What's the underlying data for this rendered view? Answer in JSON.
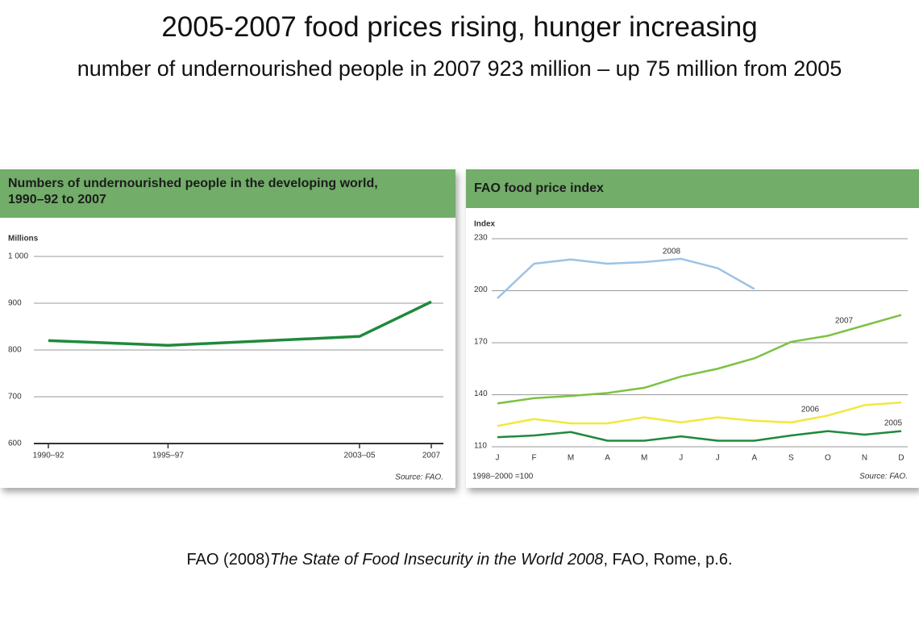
{
  "title": "2005-2007 food prices rising, hunger increasing",
  "subtitle": "number of undernourished people in 2007 923 million – up 75 million from 2005",
  "chart_data": [
    {
      "type": "line",
      "title": "Numbers of undernourished people in the developing world,\n1990–92 to 2007",
      "ylabel": "Millions",
      "source": "Source: FAO.",
      "x": [
        1991,
        1996,
        2004,
        2007
      ],
      "values": [
        820,
        810,
        829,
        903
      ],
      "color": "#1f8a3c",
      "xlim": [
        1991,
        2007
      ],
      "xticks": [
        {
          "value": 1991,
          "label": "1990–92"
        },
        {
          "value": 1996,
          "label": "1995–97"
        },
        {
          "value": 2004,
          "label": "2003–05"
        },
        2007
      ],
      "ylim": [
        600,
        1000
      ],
      "yticks": [
        {
          "value": 1000,
          "label": "1 000"
        },
        900,
        800,
        700,
        600
      ],
      "grid": true
    },
    {
      "type": "line",
      "title": "FAO food price index",
      "ylabel": "Index",
      "note": "1998–2000 =100",
      "source": "Source: FAO.",
      "categories": [
        "J",
        "F",
        "M",
        "A",
        "M",
        "J",
        "J",
        "A",
        "S",
        "O",
        "N",
        "D"
      ],
      "series": [
        {
          "name": "2008",
          "color": "#9cc3e4",
          "values": [
            195.6,
            215.6,
            218,
            215.6,
            216.5,
            218.4,
            213,
            201,
            null,
            null,
            null,
            null
          ]
        },
        {
          "name": "2007",
          "color": "#7cc242",
          "values": [
            135,
            138,
            139.3,
            141,
            144,
            150.5,
            155,
            161,
            170.5,
            174,
            180,
            186
          ]
        },
        {
          "name": "2006",
          "color": "#f2e83c",
          "values": [
            122,
            126,
            123.5,
            123.5,
            127,
            124,
            127,
            125,
            124,
            128,
            134,
            135.5
          ]
        },
        {
          "name": "2005",
          "color": "#1f8a3c",
          "values": [
            115.5,
            116.5,
            118.5,
            113.5,
            113.5,
            116,
            113.5,
            113.5,
            116.5,
            119,
            117,
            119
          ]
        }
      ],
      "ylim": [
        110,
        230
      ],
      "yticks": [
        110,
        140,
        170,
        200,
        230
      ],
      "grid": true
    }
  ],
  "citation": {
    "before": "FAO (2008)",
    "italic": "The State of Food Insecurity in the World 2008",
    "after": ", FAO, Rome, p.6."
  }
}
